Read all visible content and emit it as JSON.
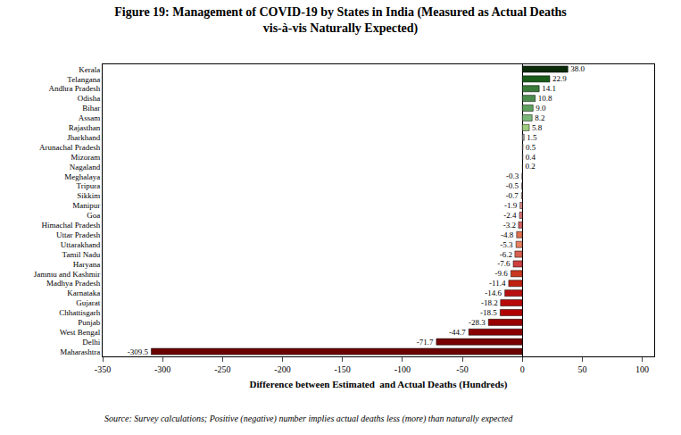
{
  "chart_data": {
    "type": "bar",
    "orientation": "horizontal",
    "title": "Figure 19: Management of COVID-19 by States in India (Measured as Actual Deaths\nvis-à-vis Naturally Expected)",
    "xlabel": "Difference between Estimated  and Actual Deaths (Hundreds)",
    "source": "Source: Survey calculations; Positive (negative) number implies actual deaths less (more) than naturally expected",
    "categories": [
      "Kerala",
      "Telangana",
      "Andhra Pradesh",
      "Odisha",
      "Bihar",
      "Assam",
      "Rajasthan",
      "Jharkhand",
      "Arunachal Pradesh",
      "Mizoram",
      "Nagaland",
      "Meghalaya",
      "Tripura",
      "Sikkim",
      "Manipur",
      "Goa",
      "Himachal Pradesh",
      "Uttar Pradesh",
      "Uttarakhand",
      "Tamil Nadu",
      "Haryana",
      "Jammu and Kashmir",
      "Madhya Pradesh",
      "Karnataka",
      "Gujarat",
      "Chhattisgarh",
      "Punjab",
      "West Bengal",
      "Delhi",
      "Maharashtra"
    ],
    "values": [
      38.0,
      22.9,
      14.1,
      10.8,
      9.0,
      8.2,
      5.8,
      1.5,
      0.5,
      0.4,
      0.2,
      -0.3,
      -0.5,
      -0.7,
      -1.9,
      -2.4,
      -3.2,
      -4.8,
      -5.3,
      -6.2,
      -7.6,
      -9.6,
      -11.4,
      -14.6,
      -18.2,
      -18.5,
      -28.3,
      -44.7,
      -71.7,
      -309.5
    ],
    "value_labels": [
      "38.0",
      "22.9",
      "14.1",
      "10.8",
      "9.0",
      "8.2",
      "5.8",
      "1.5",
      "0.5",
      "0.4",
      "0.2",
      "-0.3",
      "-0.5",
      "-0.7",
      "-1.9",
      "-2.4",
      "-3.2",
      "-4.8",
      "-5.3",
      "-6.2",
      "-7.6",
      "-9.6",
      "-11.4",
      "-14.6",
      "-18.2",
      "-18.5",
      "-28.3",
      "-44.7",
      "-71.7",
      "-309.5"
    ],
    "colors": [
      "#0a2a0a",
      "#1a5c1a",
      "#3a7a3a",
      "#4d8c4d",
      "#5fa05f",
      "#7ab87a",
      "#a0cc80",
      "#aaaaaa",
      "#b8b8b8",
      "#c4c4c4",
      "#cccccc",
      "#f5c8c8",
      "#f0b8b8",
      "#eeaaaa",
      "#e89090",
      "#e07878",
      "#d86060",
      "#e07050",
      "#e88060",
      "#d86050",
      "#cc4040",
      "#c83820",
      "#c02010",
      "#b81010",
      "#b80808",
      "#b00000",
      "#980000",
      "#880000",
      "#780000",
      "#6b0000"
    ],
    "data_labels": true,
    "xlim": [
      -350,
      110
    ],
    "xticks": [
      -350,
      -300,
      -250,
      -200,
      -150,
      -100,
      -50,
      0,
      50,
      100
    ],
    "grid": false
  }
}
